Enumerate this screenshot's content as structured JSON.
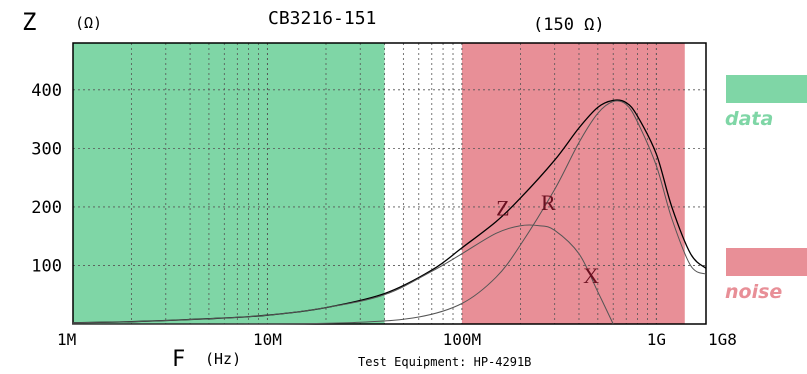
{
  "chart_data": {
    "type": "line",
    "title": "CB3216-151",
    "impedance_note": "(150  Ω)",
    "y_axis": {
      "letter": "Z",
      "unit": "(Ω)",
      "ticks": [
        100,
        200,
        300,
        400
      ],
      "range": [
        0,
        480
      ]
    },
    "x_axis": {
      "letter": "F",
      "unit": "(Hz)",
      "scale": "log",
      "range_hz": [
        1000000,
        1800000000
      ],
      "tick_labels": [
        {
          "value_hz": 1000000,
          "label": "1M"
        },
        {
          "value_hz": 10000000,
          "label": "10M"
        },
        {
          "value_hz": 100000000,
          "label": "100M"
        },
        {
          "value_hz": 1000000000,
          "label": "1G"
        },
        {
          "value_hz": 1800000000,
          "label": "1G8"
        }
      ]
    },
    "footer": "Test Equipment: HP-4291B",
    "grid": true,
    "regions": [
      {
        "label": "data",
        "color": "#7fd6a6",
        "from_hz": 1000000,
        "to_hz": 40000000
      },
      {
        "label": "noise",
        "color": "#e88f97",
        "from_hz": 100000000,
        "to_hz": 1400000000
      }
    ],
    "series": [
      {
        "name": "Z",
        "color": "#000000",
        "x_hz": [
          1000000,
          2000000,
          5000000,
          10000000,
          20000000,
          40000000,
          70000000,
          100000000,
          150000000,
          200000000,
          300000000,
          400000000,
          500000000,
          600000000,
          700000000,
          800000000,
          1000000000,
          1200000000,
          1500000000,
          1800000000
        ],
        "values": [
          2,
          4,
          9,
          15,
          28,
          52,
          92,
          130,
          175,
          215,
          280,
          335,
          370,
          382,
          378,
          355,
          290,
          200,
          120,
          95
        ]
      },
      {
        "name": "R",
        "color": "#555555",
        "x_hz": [
          1000000,
          10000000,
          30000000,
          60000000,
          100000000,
          150000000,
          200000000,
          300000000,
          400000000,
          500000000,
          600000000,
          700000000,
          800000000,
          1000000000,
          1200000000,
          1500000000,
          1800000000
        ],
        "values": [
          0,
          0,
          3,
          12,
          35,
          80,
          135,
          230,
          310,
          360,
          380,
          375,
          345,
          270,
          180,
          100,
          85
        ]
      },
      {
        "name": "X",
        "color": "#555555",
        "x_hz": [
          1000000,
          2000000,
          5000000,
          10000000,
          20000000,
          40000000,
          70000000,
          100000000,
          150000000,
          200000000,
          250000000,
          300000000,
          400000000,
          500000000,
          600000000
        ],
        "values": [
          2,
          4,
          9,
          15,
          28,
          50,
          90,
          120,
          155,
          168,
          168,
          160,
          120,
          55,
          0
        ]
      }
    ]
  }
}
